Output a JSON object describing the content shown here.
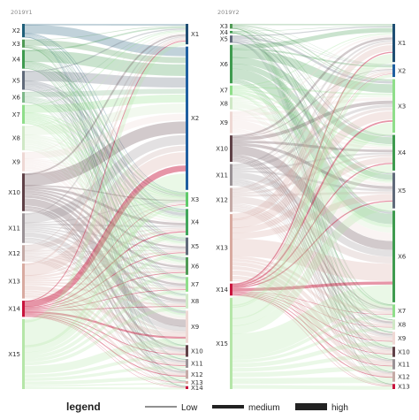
{
  "panels": [
    {
      "id": "p1",
      "title": "2019Y1",
      "left_nodes": [
        {
          "label": "X2",
          "color": "#1f5f7a",
          "value": 5
        },
        {
          "label": "X3",
          "color": "#4f9a55",
          "value": 3
        },
        {
          "label": "X4",
          "color": "#3f9b4f",
          "value": 7
        },
        {
          "label": "X5",
          "color": "#606a7a",
          "value": 7
        },
        {
          "label": "X6",
          "color": "#7fb88a",
          "value": 4
        },
        {
          "label": "X7",
          "color": "#8fde8a",
          "value": 7
        },
        {
          "label": "X8",
          "color": "#cfe8c6",
          "value": 9
        },
        {
          "label": "X9",
          "color": "#eed8d4",
          "value": 7
        },
        {
          "label": "X10",
          "color": "#5f4147",
          "value": 14
        },
        {
          "label": "X11",
          "color": "#9a9296",
          "value": 11
        },
        {
          "label": "X12",
          "color": "#c4aaa6",
          "value": 6
        },
        {
          "label": "X13",
          "color": "#d8aaa0",
          "value": 13
        },
        {
          "label": "X14",
          "color": "#c8143c",
          "value": 6
        },
        {
          "label": "X15",
          "color": "#b5e6a8",
          "value": 26
        }
      ],
      "right_nodes": [
        {
          "label": "X1",
          "color": "#1f4e73",
          "value": 7
        },
        {
          "label": "X2",
          "color": "#1f5fa0",
          "value": 49
        },
        {
          "label": "X3",
          "color": "#5fca6a",
          "value": 5
        },
        {
          "label": "X4",
          "color": "#40a55a",
          "value": 9
        },
        {
          "label": "X5",
          "color": "#606a7a",
          "value": 6
        },
        {
          "label": "X6",
          "color": "#4f9a55",
          "value": 6
        },
        {
          "label": "X7",
          "color": "#8fde8a",
          "value": 5
        },
        {
          "label": "X8",
          "color": "#cfe8c6",
          "value": 5
        },
        {
          "label": "X9",
          "color": "#eed8d4",
          "value": 11
        },
        {
          "label": "X10",
          "color": "#5f4147",
          "value": 4
        },
        {
          "label": "X11",
          "color": "#9a9296",
          "value": 3
        },
        {
          "label": "X12",
          "color": "#c4aaa6",
          "value": 3
        },
        {
          "label": "X13",
          "color": "#d8aaa0",
          "value": 1
        },
        {
          "label": "X14",
          "color": "#c8143c",
          "value": 1
        }
      ]
    },
    {
      "id": "p2",
      "title": "2019Y2",
      "left_nodes": [
        {
          "label": "X3",
          "color": "#4f9a55",
          "value": 2
        },
        {
          "label": "X4",
          "color": "#3f9b4f",
          "value": 1
        },
        {
          "label": "X5",
          "color": "#606a7a",
          "value": 3
        },
        {
          "label": "X6",
          "color": "#3f9b4f",
          "value": 16
        },
        {
          "label": "X7",
          "color": "#8fde8a",
          "value": 4
        },
        {
          "label": "X8",
          "color": "#cfe8c6",
          "value": 5
        },
        {
          "label": "X9",
          "color": "#eed8d4",
          "value": 9
        },
        {
          "label": "X10",
          "color": "#5f4147",
          "value": 11
        },
        {
          "label": "X11",
          "color": "#9a9296",
          "value": 9
        },
        {
          "label": "X12",
          "color": "#c4aaa6",
          "value": 10
        },
        {
          "label": "X13",
          "color": "#d8aaa0",
          "value": 28
        },
        {
          "label": "X14",
          "color": "#c8143c",
          "value": 5
        },
        {
          "label": "X15",
          "color": "#b5e6a8",
          "value": 38
        }
      ],
      "right_nodes": [
        {
          "label": "X1",
          "color": "#1f4e73",
          "value": 15
        },
        {
          "label": "X2",
          "color": "#1f5fa0",
          "value": 5
        },
        {
          "label": "X3",
          "color": "#8fde8a",
          "value": 21
        },
        {
          "label": "X4",
          "color": "#3f9b4f",
          "value": 14
        },
        {
          "label": "X5",
          "color": "#606a7a",
          "value": 14
        },
        {
          "label": "X6",
          "color": "#3f9b4f",
          "value": 36
        },
        {
          "label": "X7",
          "color": "#8fde8a",
          "value": 5
        },
        {
          "label": "X8",
          "color": "#cfe8c6",
          "value": 4
        },
        {
          "label": "X9",
          "color": "#eed8d4",
          "value": 5
        },
        {
          "label": "X10",
          "color": "#5f4147",
          "value": 4
        },
        {
          "label": "X11",
          "color": "#9a9296",
          "value": 4
        },
        {
          "label": "X12",
          "color": "#c4aaa6",
          "value": 4
        },
        {
          "label": "X13",
          "color": "#c8143c",
          "value": 2
        }
      ]
    }
  ],
  "legend": {
    "title": "legend",
    "items": [
      {
        "label": "Low",
        "level": 1
      },
      {
        "label": "medium",
        "level": 2
      },
      {
        "label": "high",
        "level": 3
      }
    ]
  }
}
